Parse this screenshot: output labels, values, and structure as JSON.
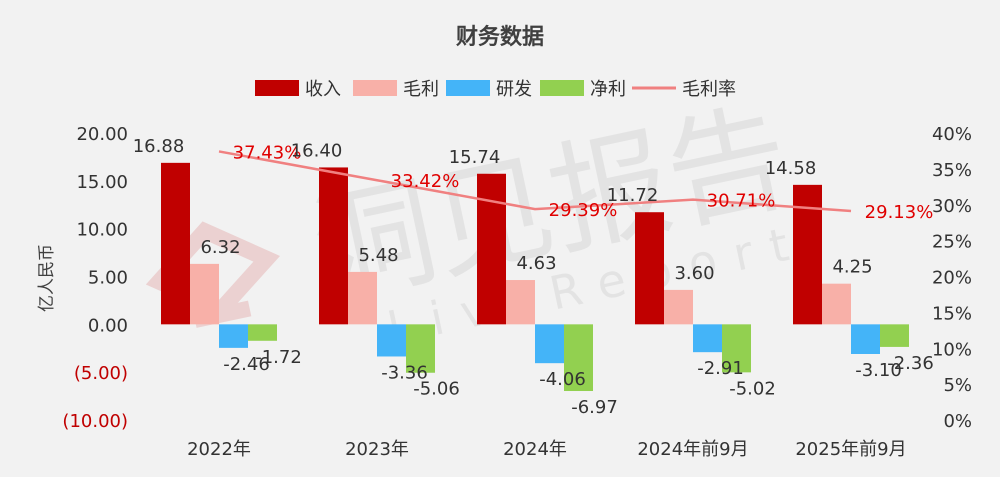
{
  "colors": {
    "background": "#f2f2f2",
    "revenue": "#c00000",
    "gross_profit": "#f8b0a8",
    "rnd": "#44b4f8",
    "net_profit": "#92d050",
    "gross_margin_line": "#f08080",
    "margin_label": "#e00000",
    "negative_tick": "#c00000",
    "text": "#333333"
  },
  "watermark": {
    "text": "洞见报告",
    "sub": "LiveReport"
  },
  "chart_data": {
    "type": "bar",
    "title": "财务数据",
    "ylabel": "亿人民币",
    "categories": [
      "2022年",
      "2023年",
      "2024年",
      "2024年前9月",
      "2025年前9月"
    ],
    "series": [
      {
        "name": "收入",
        "type": "bar",
        "values": [
          16.88,
          16.4,
          15.74,
          11.72,
          14.58
        ],
        "labels": [
          "16.88",
          "16.40",
          "15.74",
          "11.72",
          "14.58"
        ]
      },
      {
        "name": "毛利",
        "type": "bar",
        "values": [
          6.32,
          5.48,
          4.63,
          3.6,
          4.25
        ],
        "labels": [
          "6.32",
          "5.48",
          "4.63",
          "3.60",
          "4.25"
        ]
      },
      {
        "name": "研发",
        "type": "bar",
        "values": [
          -2.46,
          -3.36,
          -4.06,
          -2.91,
          -3.1
        ],
        "labels": [
          "-2.46",
          "-3.36",
          "-4.06",
          "-2.91",
          "-3.10"
        ]
      },
      {
        "name": "净利",
        "type": "bar",
        "values": [
          -1.72,
          -5.06,
          -6.97,
          -5.02,
          -2.36
        ],
        "labels": [
          "-1.72",
          "-5.06",
          "-6.97",
          "-5.02",
          "-2.36"
        ]
      },
      {
        "name": "毛利率",
        "type": "line",
        "axis": "right",
        "values": [
          37.43,
          33.42,
          29.39,
          30.71,
          29.13
        ],
        "labels": [
          "37.43%",
          "33.42%",
          "29.39%",
          "30.71%",
          "29.13%"
        ]
      }
    ],
    "y_left": {
      "range": [
        -10,
        20
      ],
      "ticks": [
        20,
        15,
        10,
        5,
        0,
        -5,
        -10
      ],
      "tick_labels": [
        "20.00",
        "15.00",
        "10.00",
        "5.00",
        "0.00",
        "(5.00)",
        "(10.00)"
      ]
    },
    "y_right": {
      "range": [
        0,
        40
      ],
      "ticks": [
        40,
        35,
        30,
        25,
        20,
        15,
        10,
        5,
        0
      ],
      "tick_labels": [
        "40%",
        "35%",
        "30%",
        "25%",
        "20%",
        "15%",
        "10%",
        "5%",
        "0%"
      ]
    },
    "legend_position": "top-center",
    "grid": false
  }
}
